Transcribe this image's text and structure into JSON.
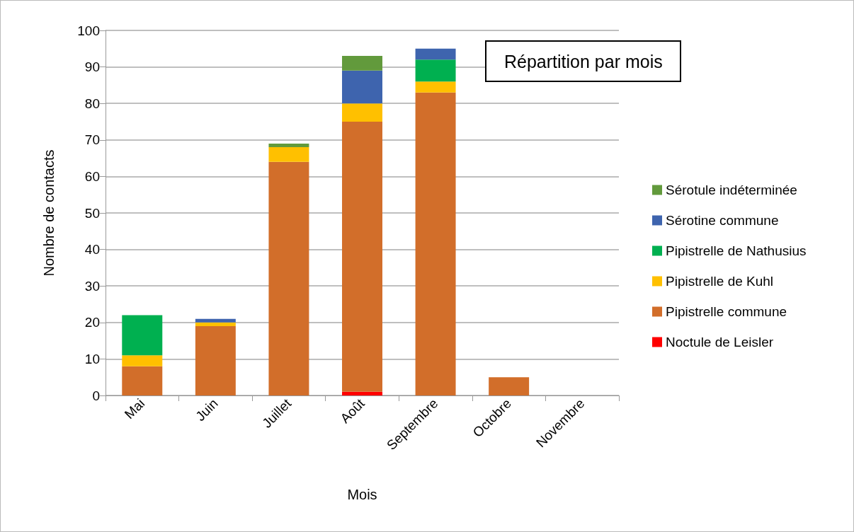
{
  "chart_data": {
    "type": "bar",
    "title": "Répartition par mois",
    "xlabel": "Mois",
    "ylabel": "Nombre de contacts",
    "categories": [
      "Mai",
      "Juin",
      "Juillet",
      "Août",
      "Septembre",
      "Octobre",
      "Novembre"
    ],
    "stacked": true,
    "ylim": [
      0,
      100
    ],
    "yticks": [
      0,
      10,
      20,
      30,
      40,
      50,
      60,
      70,
      80,
      90,
      100
    ],
    "grid": "y",
    "legend": "right",
    "series": [
      {
        "name": "Noctule de Leisler",
        "color": "#ff0000",
        "values": [
          0,
          0,
          0,
          1,
          0,
          0,
          0
        ]
      },
      {
        "name": "Pipistrelle commune",
        "color": "#d26e2a",
        "values": [
          8,
          19,
          64,
          74,
          83,
          5,
          0
        ]
      },
      {
        "name": "Pipistrelle de Kuhl",
        "color": "#ffc000",
        "values": [
          3,
          1,
          4,
          5,
          3,
          0,
          0
        ]
      },
      {
        "name": "Pipistrelle de Nathusius",
        "color": "#00b050",
        "values": [
          11,
          0,
          0,
          0,
          6,
          0,
          0
        ]
      },
      {
        "name": "Sérotine commune",
        "color": "#3e64ae",
        "values": [
          0,
          1,
          0,
          9,
          3,
          0,
          0
        ]
      },
      {
        "name": "Sérotule indéterminée",
        "color": "#629a3c",
        "values": [
          0,
          0,
          1,
          4,
          0,
          0,
          0
        ]
      }
    ]
  }
}
